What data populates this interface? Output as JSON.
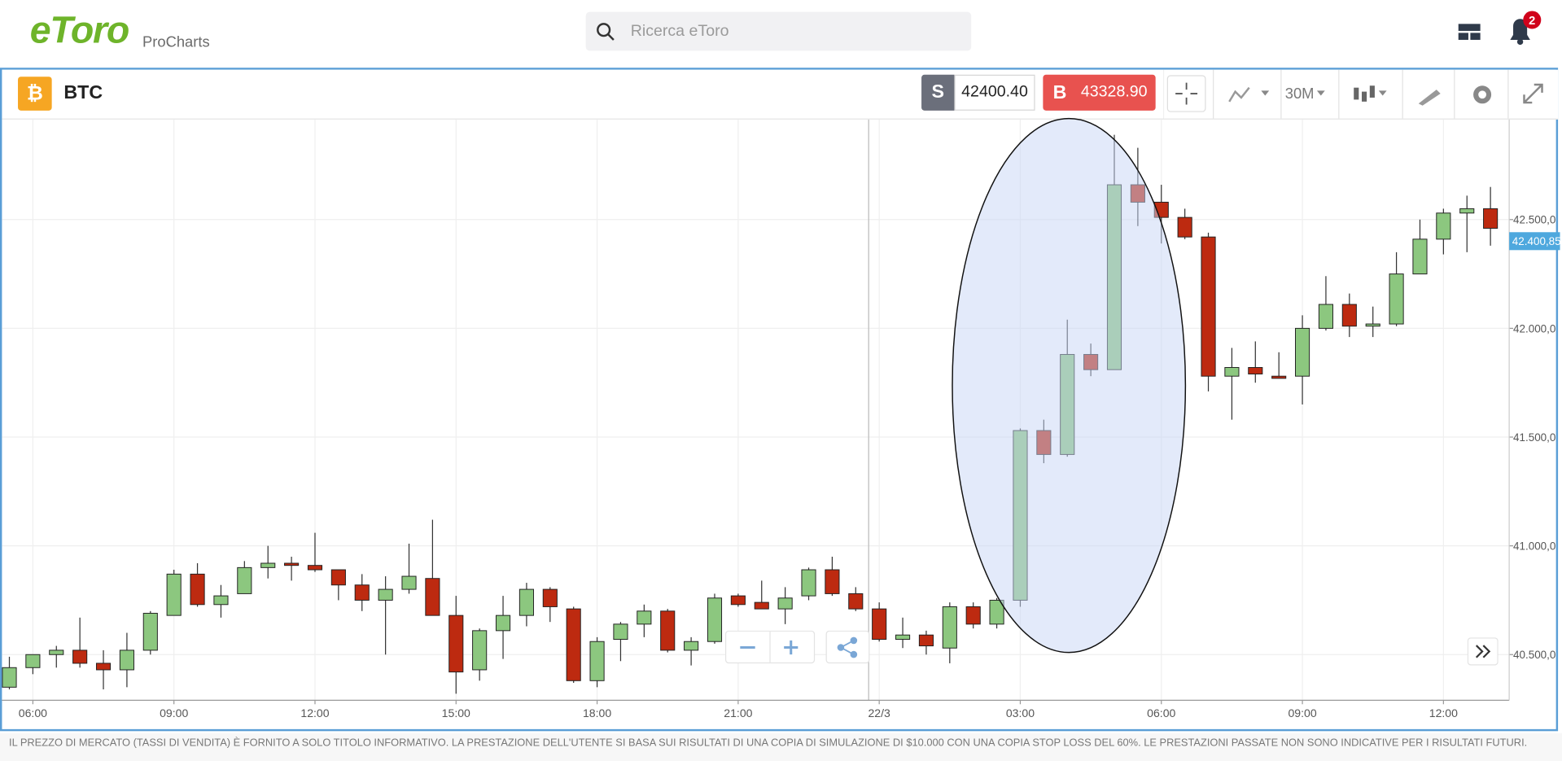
{
  "header": {
    "logo": "eToro",
    "product": "ProCharts",
    "search_placeholder": "Ricerca eToro",
    "notifications": "2"
  },
  "instrument": {
    "symbol": "BTC",
    "sell_label": "S",
    "sell_price": "42400.40",
    "buy_label": "B",
    "buy_price": "43328.90",
    "timeframe": "30M"
  },
  "chart_data": {
    "type": "candlestick",
    "categories": [
      null,
      "06:00",
      null,
      null,
      null,
      null,
      null,
      "09:00",
      null,
      null,
      null,
      null,
      null,
      "12:00",
      null,
      null,
      null,
      null,
      null,
      "15:00",
      null,
      null,
      null,
      null,
      null,
      "18:00",
      null,
      null,
      null,
      null,
      null,
      "21:00",
      null,
      null,
      null,
      null,
      null,
      "22/3",
      null,
      null,
      null,
      null,
      null,
      "03:00",
      null,
      null,
      null,
      null,
      null,
      "06:00",
      null,
      null,
      null,
      null,
      null,
      "09:00",
      null,
      null,
      null,
      null,
      null,
      "12:00",
      null,
      null
    ],
    "open": [
      40350,
      40440,
      40500,
      40520,
      40460,
      40430,
      40520,
      40680,
      40870,
      40730,
      40780,
      40900,
      40920,
      40910,
      40890,
      40820,
      40750,
      40800,
      40850,
      40680,
      40430,
      40610,
      40680,
      40800,
      40710,
      40380,
      40570,
      40640,
      40700,
      40520,
      40560,
      40770,
      40740,
      40710,
      40770,
      40890,
      40780,
      40710,
      40570,
      40590,
      40530,
      40720,
      40640,
      40750,
      41530,
      41420,
      41880,
      41810,
      42660,
      42580,
      42510,
      42420,
      41780,
      41820,
      41780,
      41780,
      42000,
      42110,
      42010,
      42020,
      42250,
      42410,
      42530,
      42550
    ],
    "high": [
      40490,
      40500,
      40540,
      40670,
      40520,
      40600,
      40700,
      40890,
      40920,
      40820,
      40930,
      41000,
      40950,
      41060,
      40890,
      40870,
      40860,
      41010,
      41120,
      40770,
      40620,
      40770,
      40830,
      40810,
      40720,
      40580,
      40650,
      40730,
      40710,
      40580,
      40780,
      40780,
      40840,
      40810,
      40900,
      40950,
      40810,
      40740,
      40670,
      40610,
      40740,
      40740,
      40760,
      41540,
      41580,
      42040,
      41930,
      42890,
      42830,
      42660,
      42550,
      42440,
      41910,
      41940,
      41890,
      42060,
      42240,
      42160,
      42100,
      42350,
      42500,
      42550,
      42610,
      42650
    ],
    "low": [
      40340,
      40410,
      40440,
      40440,
      40340,
      40350,
      40500,
      40680,
      40720,
      40670,
      40780,
      40850,
      40840,
      40880,
      40750,
      40700,
      40500,
      40780,
      40680,
      40320,
      40380,
      40480,
      40630,
      40650,
      40370,
      40350,
      40470,
      40580,
      40510,
      40450,
      40550,
      40720,
      40710,
      40640,
      40750,
      40770,
      40700,
      40560,
      40530,
      40500,
      40460,
      40620,
      40620,
      40720,
      41380,
      41410,
      41780,
      41810,
      42470,
      42390,
      42410,
      41710,
      41580,
      41750,
      41770,
      41650,
      41990,
      41960,
      41960,
      42010,
      42250,
      42340,
      42350,
      42380
    ],
    "close": [
      40440,
      40500,
      40520,
      40460,
      40430,
      40520,
      40690,
      40870,
      40730,
      40770,
      40900,
      40920,
      40910,
      40890,
      40820,
      40750,
      40800,
      40860,
      40680,
      40420,
      40610,
      40680,
      40800,
      40720,
      40380,
      40560,
      40640,
      40700,
      40520,
      40560,
      40760,
      40730,
      40710,
      40760,
      40890,
      40780,
      40710,
      40570,
      40590,
      40540,
      40720,
      40640,
      40750,
      41530,
      41420,
      41880,
      41810,
      42660,
      42580,
      42510,
      42420,
      41780,
      41820,
      41790,
      41770,
      42000,
      42110,
      42010,
      42020,
      42250,
      42410,
      42530,
      42550,
      42460
    ],
    "up_color": "#8cc77f",
    "down_color": "#bd2a10",
    "ylim": [
      40290,
      42960
    ],
    "yticks": [
      {
        "value": 40500,
        "label": "40.500,0"
      },
      {
        "value": 41000,
        "label": "41.000,0"
      },
      {
        "value": 41500,
        "label": "41.500,0"
      },
      {
        "value": 42000,
        "label": "42.000,0"
      },
      {
        "value": 42500,
        "label": "42.500,0"
      }
    ],
    "last_price": {
      "value": 42400.85,
      "label": "42.400,85"
    },
    "grid": true
  },
  "footer": {
    "disclaimer": "IL PREZZO DI MERCATO (TASSI DI VENDITA) È FORNITO A SOLO TITOLO INFORMATIVO. LA PRESTAZIONE DELL'UTENTE SI BASA SUI RISULTATI DI UNA COPIA DI SIMULAZIONE DI $10.000 CON UNA COPIA STOP LOSS DEL 60%. LE PRESTAZIONI PASSATE NON SONO INDICATIVE PER I RISULTATI FUTURI."
  }
}
